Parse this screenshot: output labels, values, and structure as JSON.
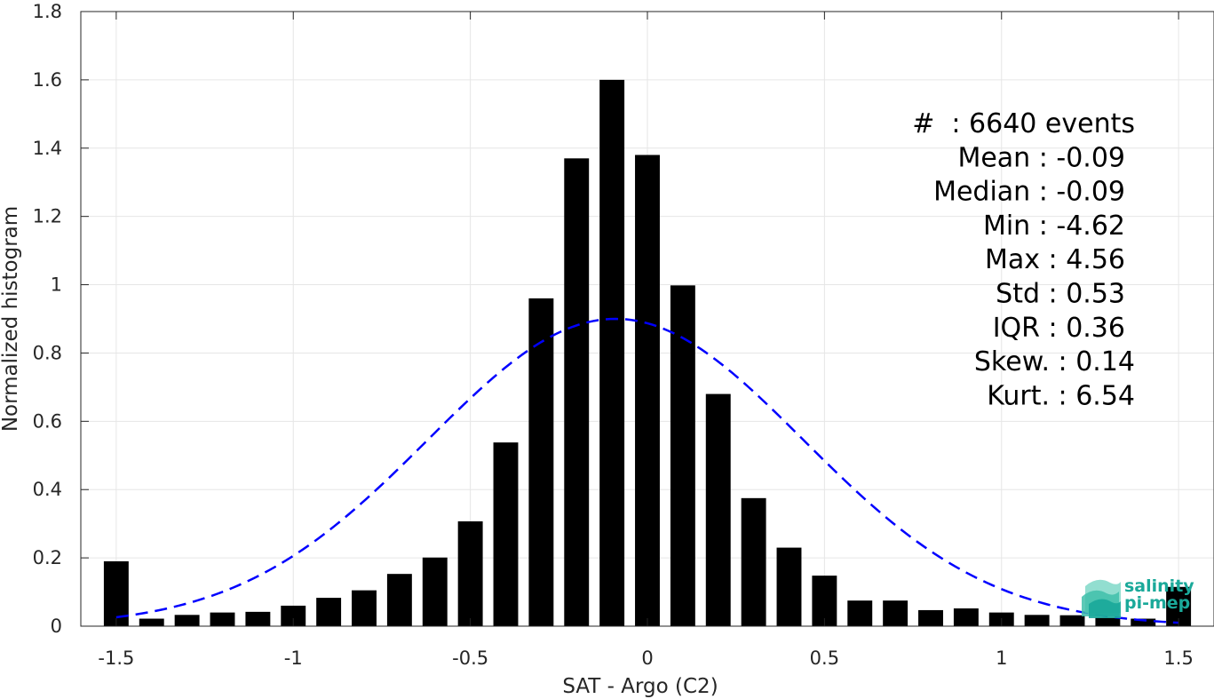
{
  "chart_data": {
    "type": "bar",
    "xlabel": "SAT - Argo (C2)",
    "ylabel": "Normalized histogram",
    "xlim": [
      -1.6,
      1.6
    ],
    "ylim": [
      0,
      1.8
    ],
    "xticks": [
      "-1.5",
      "-1",
      "-0.5",
      "0",
      "0.5",
      "1",
      "1.5"
    ],
    "xtick_values": [
      -1.5,
      -1,
      -0.5,
      0,
      0.5,
      1,
      1.5
    ],
    "yticks": [
      "0",
      "0.2",
      "0.4",
      "0.6",
      "0.8",
      "1",
      "1.2",
      "1.4",
      "1.6",
      "1.8"
    ],
    "ytick_values": [
      0,
      0.2,
      0.4,
      0.6,
      0.8,
      1.0,
      1.2,
      1.4,
      1.6,
      1.8
    ],
    "grid": true,
    "bar_width": 0.07,
    "bar_color": "#000000",
    "bars": {
      "x": [
        -1.5,
        -1.4,
        -1.3,
        -1.2,
        -1.1,
        -1.0,
        -0.9,
        -0.8,
        -0.7,
        -0.6,
        -0.5,
        -0.4,
        -0.3,
        -0.2,
        -0.1,
        0.0,
        0.1,
        0.2,
        0.3,
        0.4,
        0.5,
        0.6,
        0.7,
        0.8,
        0.9,
        1.0,
        1.1,
        1.2,
        1.3,
        1.4,
        1.5
      ],
      "y": [
        0.19,
        0.022,
        0.033,
        0.04,
        0.042,
        0.06,
        0.083,
        0.105,
        0.153,
        0.201,
        0.307,
        0.538,
        0.96,
        1.37,
        1.6,
        1.38,
        0.998,
        0.68,
        0.375,
        0.23,
        0.148,
        0.075,
        0.075,
        0.047,
        0.052,
        0.04,
        0.033,
        0.032,
        0.025,
        0.022,
        0.115
      ]
    },
    "fit_curve": {
      "type": "gaussian",
      "mean": -0.09,
      "std": 0.53,
      "peak": 0.9,
      "x_range": [
        -1.5,
        1.5
      ],
      "color": "#0000ff",
      "style": "dashed"
    }
  },
  "stats": {
    "lines": [
      "#  : 6640 events",
      "Mean : -0.09",
      "Median : -0.09",
      "Min : -4.62",
      "Max : 4.56",
      "Std : 0.53",
      "IQR : 0.36",
      "Skew. : 0.14",
      "Kurt. : 6.54"
    ]
  },
  "logo": {
    "line1": "salinity",
    "line2": "pi-mep",
    "color": "#1aa99a"
  }
}
